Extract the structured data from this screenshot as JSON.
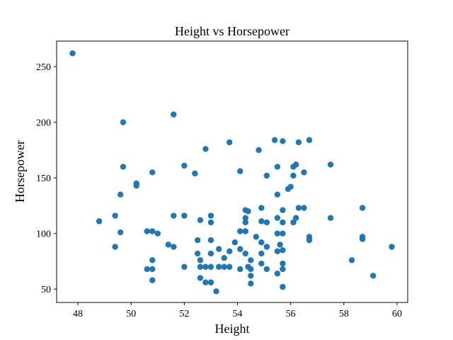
{
  "chart_data": {
    "type": "scatter",
    "title": "Height vs Horsepower",
    "xlabel": "Height",
    "ylabel": "Horsepower",
    "xlim": [
      47.2,
      60.4
    ],
    "ylim": [
      38,
      273
    ],
    "xticks": [
      48,
      50,
      52,
      54,
      56,
      58,
      60
    ],
    "yticks": [
      50,
      100,
      150,
      200,
      250
    ],
    "grid": false,
    "marker_color": "#1f77b4",
    "points": [
      [
        47.8,
        262
      ],
      [
        48.8,
        111
      ],
      [
        49.4,
        116
      ],
      [
        49.4,
        88
      ],
      [
        49.6,
        101
      ],
      [
        49.6,
        135
      ],
      [
        49.7,
        160
      ],
      [
        49.7,
        200
      ],
      [
        50.2,
        145
      ],
      [
        50.2,
        143
      ],
      [
        50.6,
        102
      ],
      [
        50.6,
        68
      ],
      [
        50.8,
        102
      ],
      [
        50.8,
        155
      ],
      [
        50.8,
        76
      ],
      [
        50.8,
        68
      ],
      [
        50.8,
        58
      ],
      [
        51.0,
        100
      ],
      [
        51.4,
        90
      ],
      [
        51.6,
        207
      ],
      [
        51.6,
        116
      ],
      [
        51.6,
        88
      ],
      [
        52.0,
        161
      ],
      [
        52.0,
        116
      ],
      [
        52.0,
        70
      ],
      [
        52.4,
        154
      ],
      [
        52.5,
        82
      ],
      [
        52.5,
        94
      ],
      [
        52.6,
        112
      ],
      [
        52.6,
        76
      ],
      [
        52.6,
        70
      ],
      [
        52.6,
        60
      ],
      [
        52.8,
        176
      ],
      [
        52.8,
        70
      ],
      [
        52.8,
        56
      ],
      [
        53.0,
        116
      ],
      [
        53.0,
        110
      ],
      [
        53.0,
        94
      ],
      [
        53.0,
        82
      ],
      [
        53.0,
        70
      ],
      [
        53.0,
        56
      ],
      [
        53.2,
        48
      ],
      [
        53.3,
        86
      ],
      [
        53.3,
        70
      ],
      [
        53.5,
        78
      ],
      [
        53.5,
        70
      ],
      [
        53.7,
        182
      ],
      [
        53.7,
        84
      ],
      [
        53.7,
        70
      ],
      [
        53.9,
        92
      ],
      [
        54.1,
        156
      ],
      [
        54.1,
        102
      ],
      [
        54.1,
        86
      ],
      [
        54.1,
        68
      ],
      [
        54.3,
        121
      ],
      [
        54.3,
        114
      ],
      [
        54.3,
        110
      ],
      [
        54.3,
        102
      ],
      [
        54.3,
        82
      ],
      [
        54.4,
        120
      ],
      [
        54.4,
        70
      ],
      [
        54.5,
        76
      ],
      [
        54.5,
        68
      ],
      [
        54.5,
        62
      ],
      [
        54.5,
        55
      ],
      [
        54.7,
        97
      ],
      [
        54.8,
        175
      ],
      [
        54.9,
        123
      ],
      [
        54.9,
        111
      ],
      [
        54.9,
        92
      ],
      [
        54.9,
        82
      ],
      [
        54.9,
        73
      ],
      [
        55.1,
        152
      ],
      [
        55.1,
        110
      ],
      [
        55.1,
        88
      ],
      [
        55.1,
        68
      ],
      [
        55.4,
        184
      ],
      [
        55.5,
        160
      ],
      [
        55.5,
        135
      ],
      [
        55.5,
        114
      ],
      [
        55.5,
        100
      ],
      [
        55.5,
        84
      ],
      [
        55.5,
        64
      ],
      [
        55.6,
        90
      ],
      [
        55.7,
        183
      ],
      [
        55.7,
        121
      ],
      [
        55.7,
        110
      ],
      [
        55.7,
        100
      ],
      [
        55.7,
        85
      ],
      [
        55.7,
        73
      ],
      [
        55.7,
        68
      ],
      [
        55.7,
        52
      ],
      [
        55.9,
        140
      ],
      [
        56.0,
        142
      ],
      [
        56.1,
        160
      ],
      [
        56.1,
        152
      ],
      [
        56.1,
        110
      ],
      [
        56.2,
        162
      ],
      [
        56.2,
        114
      ],
      [
        56.3,
        182
      ],
      [
        56.3,
        123
      ],
      [
        56.5,
        155
      ],
      [
        56.5,
        123
      ],
      [
        56.7,
        184
      ],
      [
        56.7,
        97
      ],
      [
        56.7,
        94
      ],
      [
        57.5,
        162
      ],
      [
        57.5,
        114
      ],
      [
        58.3,
        76
      ],
      [
        58.7,
        123
      ],
      [
        58.7,
        97
      ],
      [
        58.7,
        95
      ],
      [
        59.1,
        62
      ],
      [
        59.8,
        88
      ]
    ]
  }
}
